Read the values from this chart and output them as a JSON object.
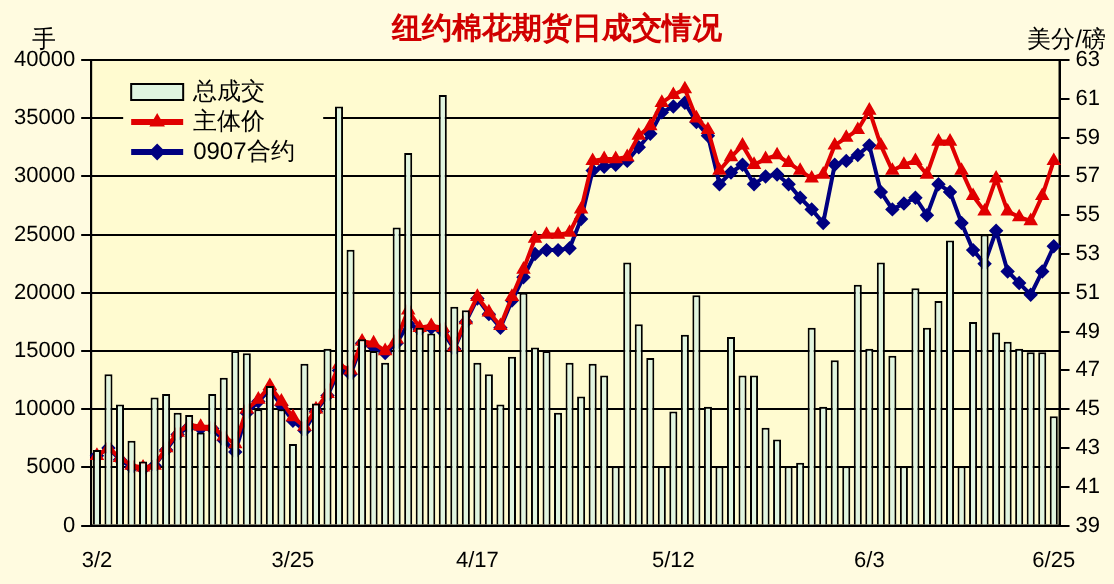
{
  "chart_data": {
    "type": "bar",
    "title": "纽约棉花期货日成交情况",
    "ylabel": "手",
    "y2label": "美分/磅",
    "categories": [
      "3/2",
      null,
      null,
      null,
      null,
      null,
      null,
      null,
      null,
      null,
      null,
      null,
      null,
      null,
      null,
      null,
      null,
      "3/25",
      null,
      null,
      null,
      null,
      null,
      null,
      null,
      null,
      null,
      null,
      null,
      null,
      null,
      null,
      null,
      "4/17",
      null,
      null,
      null,
      null,
      null,
      null,
      null,
      null,
      null,
      null,
      null,
      null,
      null,
      null,
      null,
      null,
      "5/12",
      null,
      null,
      null,
      null,
      null,
      null,
      null,
      null,
      null,
      null,
      null,
      null,
      null,
      null,
      null,
      null,
      "6/3",
      null,
      null,
      null,
      null,
      null,
      null,
      null,
      null,
      null,
      null,
      null,
      null,
      null,
      null,
      null,
      "6/25"
    ],
    "series": [
      {
        "name": "总成交",
        "color": "#e0f5e0",
        "values": [
          6500,
          13000,
          10400,
          7300,
          5500,
          11000,
          11300,
          9700,
          9500,
          8000,
          11300,
          12700,
          15000,
          14800,
          10000,
          12000,
          10000,
          7000,
          13900,
          10500,
          15200,
          36000,
          23700,
          16000,
          15000,
          14000,
          25600,
          32000,
          17000,
          16500,
          37000,
          18800,
          18500,
          14000,
          13000,
          10400,
          14500,
          20000,
          15300,
          15000,
          9700,
          14000,
          11100,
          13900,
          12900,
          5100,
          22600,
          17300,
          14400,
          5100,
          9800,
          16400,
          19800,
          10200,
          5100,
          16200,
          12900,
          12900,
          8400,
          7400,
          5100,
          5400,
          17000,
          10200,
          14200,
          5100,
          20700,
          15200,
          22600,
          14600,
          5100,
          20400,
          17000,
          19300,
          24500,
          5100,
          17500,
          25000,
          16600,
          15800,
          15200,
          14900,
          14900,
          9400
        ]
      },
      {
        "name": "主体价",
        "type": "line",
        "axis": "y2",
        "color": "#e00000",
        "marker": "triangle",
        "values": [
          42.6,
          43.0,
          42.5,
          42.1,
          42.0,
          42.1,
          43.0,
          43.8,
          44.2,
          44.1,
          44.1,
          43.6,
          43.2,
          45.0,
          45.5,
          46.2,
          45.4,
          44.6,
          44.1,
          45.0,
          45.8,
          47.3,
          47.0,
          48.5,
          48.4,
          48.0,
          48.6,
          50.1,
          49.2,
          49.3,
          49.2,
          48.2,
          49.6,
          50.8,
          50.0,
          49.3,
          50.8,
          52.2,
          53.8,
          54.0,
          54.0,
          54.1,
          55.3,
          57.8,
          57.9,
          57.9,
          58.0,
          59.1,
          59.6,
          60.8,
          61.2,
          61.5,
          60.0,
          59.4,
          57.3,
          58.0,
          58.6,
          57.6,
          57.9,
          58.1,
          57.7,
          57.3,
          56.9,
          57.1,
          58.6,
          59.0,
          59.4,
          60.4,
          58.6,
          57.3,
          57.6,
          57.8,
          57.1,
          58.8,
          58.8,
          57.3,
          56.0,
          55.2,
          56.9,
          55.2,
          54.9,
          54.7,
          56.0,
          57.8
        ]
      },
      {
        "name": "0907合约",
        "type": "line",
        "axis": "y2",
        "color": "#000080",
        "marker": "diamond",
        "values": [
          42.6,
          43.0,
          42.4,
          42.0,
          41.9,
          42.1,
          42.9,
          43.7,
          44.1,
          44.0,
          44.0,
          43.4,
          42.8,
          44.8,
          45.4,
          46.0,
          45.2,
          44.4,
          43.9,
          44.9,
          45.7,
          47.0,
          46.8,
          48.4,
          48.2,
          47.9,
          48.4,
          49.4,
          49.1,
          49.2,
          49.0,
          48.1,
          49.5,
          50.7,
          49.9,
          49.2,
          50.6,
          51.8,
          53.0,
          53.2,
          53.2,
          53.3,
          54.8,
          57.3,
          57.5,
          57.6,
          57.8,
          58.5,
          59.2,
          60.3,
          60.6,
          60.8,
          59.8,
          59.1,
          56.6,
          57.2,
          57.6,
          56.6,
          57.0,
          57.1,
          56.6,
          55.9,
          55.3,
          54.6,
          57.6,
          57.8,
          58.1,
          58.6,
          56.2,
          55.3,
          55.6,
          55.9,
          55.0,
          56.6,
          56.2,
          54.6,
          53.2,
          52.5,
          54.2,
          52.1,
          51.5,
          50.9,
          52.1,
          53.4
        ]
      }
    ],
    "ylim": [
      0,
      40000
    ],
    "yticks": [
      0,
      5000,
      10000,
      15000,
      20000,
      25000,
      30000,
      35000,
      40000
    ],
    "y2lim": [
      39,
      63
    ],
    "y2ticks": [
      39,
      41,
      43,
      45,
      47,
      49,
      51,
      53,
      55,
      57,
      59,
      61,
      63
    ],
    "grid": "y",
    "legend": "top left"
  }
}
